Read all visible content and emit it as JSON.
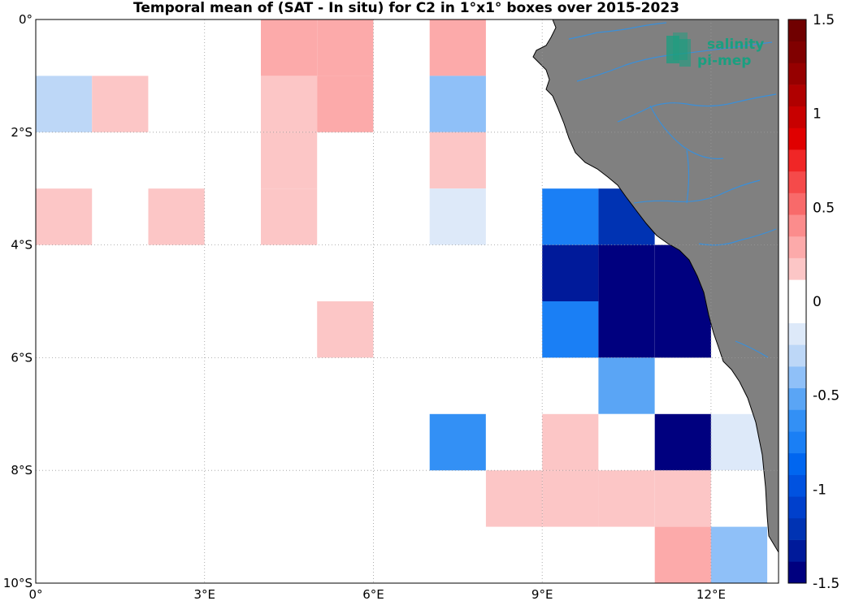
{
  "title": "Temporal mean of (SAT - In situ) for C2 in 1°x1° boxes over 2015-2023",
  "chart_data": {
    "type": "heatmap",
    "title": "Temporal mean of (SAT - In situ) for C2 in 1°x1° boxes over 2015-2023",
    "x_range": [
      0,
      13.2
    ],
    "y_range": [
      -10,
      0
    ],
    "x_ticks": [
      "0°",
      "3°E",
      "6°E",
      "9°E",
      "12°E"
    ],
    "y_ticks": [
      "0°",
      "2°S",
      "4°S",
      "6°S",
      "8°S",
      "10°S"
    ],
    "grid": true,
    "cells": [
      {
        "lon": 2,
        "lat": 0,
        "value": -0.1
      },
      {
        "lon": 4,
        "lat": 0,
        "value": 0.3
      },
      {
        "lon": 5,
        "lat": 0,
        "value": 0.3
      },
      {
        "lon": 6,
        "lat": 0,
        "value": -0.1
      },
      {
        "lon": 7,
        "lat": 0,
        "value": 0.3
      },
      {
        "lon": 0,
        "lat": -1,
        "value": -0.3
      },
      {
        "lon": 1,
        "lat": -1,
        "value": 0.2
      },
      {
        "lon": 4,
        "lat": -1,
        "value": 0.2
      },
      {
        "lon": 5,
        "lat": -1,
        "value": 0.3
      },
      {
        "lon": 7,
        "lat": -1,
        "value": -0.4
      },
      {
        "lon": 4,
        "lat": -2,
        "value": 0.2
      },
      {
        "lon": 7,
        "lat": -2,
        "value": 0.2
      },
      {
        "lon": 0,
        "lat": -3,
        "value": 0.2
      },
      {
        "lon": 2,
        "lat": -3,
        "value": 0.2
      },
      {
        "lon": 4,
        "lat": -3,
        "value": 0.2
      },
      {
        "lon": 6,
        "lat": -3,
        "value": -0.1
      },
      {
        "lon": 7,
        "lat": -3,
        "value": -0.2
      },
      {
        "lon": 8,
        "lat": -3,
        "value": -0.1
      },
      {
        "lon": 9,
        "lat": -3,
        "value": -0.7
      },
      {
        "lon": 10,
        "lat": -3,
        "value": -1.2
      },
      {
        "lon": 1,
        "lat": -4,
        "value": -0.1
      },
      {
        "lon": 7,
        "lat": -4,
        "value": -0.1
      },
      {
        "lon": 9,
        "lat": -4,
        "value": -1.3
      },
      {
        "lon": 10,
        "lat": -4,
        "value": -1.5
      },
      {
        "lon": 11,
        "lat": -4,
        "value": -1.5
      },
      {
        "lon": 5,
        "lat": -5,
        "value": 0.2
      },
      {
        "lon": 9,
        "lat": -5,
        "value": -0.8
      },
      {
        "lon": 10,
        "lat": -5,
        "value": -1.5
      },
      {
        "lon": 11,
        "lat": -5,
        "value": -1.5
      },
      {
        "lon": 1,
        "lat": -6,
        "value": -0.1
      },
      {
        "lon": 2,
        "lat": -6,
        "value": -0.1
      },
      {
        "lon": 4,
        "lat": -6,
        "value": -0.1
      },
      {
        "lon": 10,
        "lat": -6,
        "value": -0.5
      },
      {
        "lon": 3,
        "lat": -7,
        "value": -0.1
      },
      {
        "lon": 7,
        "lat": -7,
        "value": -0.6
      },
      {
        "lon": 8,
        "lat": -7,
        "value": -0.1
      },
      {
        "lon": 9,
        "lat": -7,
        "value": 0.2
      },
      {
        "lon": 10,
        "lat": -7,
        "value": -0.1
      },
      {
        "lon": 11,
        "lat": -7,
        "value": -1.4
      },
      {
        "lon": 12,
        "lat": -7,
        "value": -0.2
      },
      {
        "lon": 0,
        "lat": -8,
        "value": -0.1
      },
      {
        "lon": 8,
        "lat": -8,
        "value": 0.2
      },
      {
        "lon": 9,
        "lat": -8,
        "value": 0.2
      },
      {
        "lon": 10,
        "lat": -8,
        "value": 0.2
      },
      {
        "lon": 11,
        "lat": -8,
        "value": 0.2
      },
      {
        "lon": 12,
        "lat": -8,
        "value": -0.1
      },
      {
        "lon": 11,
        "lat": -9,
        "value": 0.3
      },
      {
        "lon": 12,
        "lat": -9,
        "value": -0.4
      }
    ],
    "colorbar": {
      "range": [
        -1.5,
        1.5
      ],
      "ticks": [
        1.5,
        1,
        0.5,
        0,
        -0.5,
        -1,
        -1.5
      ],
      "tick_labels": [
        "1.5",
        "1",
        "0.5",
        "0",
        "-0.5",
        "-1",
        "-1.5"
      ]
    }
  },
  "colors": {
    "land": "#808080",
    "river": "#3a8fd9",
    "grid": "#9a9a9a"
  },
  "logo": {
    "line1": "salinity",
    "line2": "pi-mep",
    "color": "#1a9f80"
  }
}
